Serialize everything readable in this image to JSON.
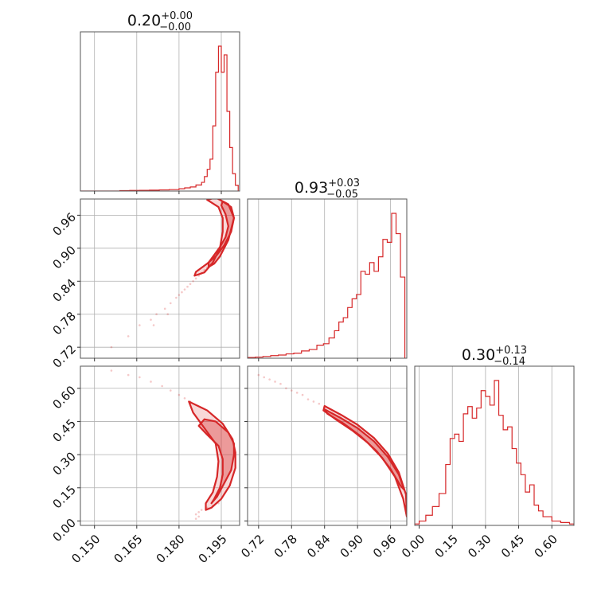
{
  "chart_data": {
    "type": "corner",
    "color": "#d62728",
    "grid": true,
    "parameters": [
      {
        "median": "0.20",
        "err_plus": "+0.00",
        "err_minus": "−0.00",
        "range": [
          0.145,
          0.2015
        ],
        "ticks": [
          "0.150",
          "0.165",
          "0.180",
          "0.195"
        ],
        "tick_values": [
          0.15,
          0.165,
          0.18,
          0.195
        ]
      },
      {
        "median": "0.93",
        "err_plus": "+0.03",
        "err_minus": "−0.05",
        "range": [
          0.7,
          0.9895
        ],
        "ticks": [
          "0.72",
          "0.78",
          "0.84",
          "0.90",
          "0.96"
        ],
        "tick_values": [
          0.72,
          0.78,
          0.84,
          0.9,
          0.96
        ]
      },
      {
        "median": "0.30",
        "err_plus": "+0.13",
        "err_minus": "−0.14",
        "range": [
          -0.02,
          0.7
        ],
        "ticks": [
          "0.00",
          "0.15",
          "0.30",
          "0.45",
          "0.60"
        ],
        "tick_values": [
          0.0,
          0.15,
          0.3,
          0.45,
          0.6
        ]
      }
    ],
    "histograms": [
      {
        "x": [
          0.145,
          0.1485,
          0.152,
          0.1555,
          0.159,
          0.1625,
          0.166,
          0.1695,
          0.173,
          0.1765,
          0.18,
          0.182,
          0.184,
          0.186,
          0.188,
          0.189,
          0.19,
          0.191,
          0.192,
          0.193,
          0.194,
          0.195,
          0.196,
          0.197,
          0.198,
          0.199,
          0.2,
          0.201
        ],
        "y": [
          0,
          0,
          0,
          0,
          0.003,
          0.004,
          0.005,
          0.006,
          0.008,
          0.01,
          0.016,
          0.022,
          0.028,
          0.042,
          0.06,
          0.1,
          0.15,
          0.22,
          0.45,
          0.82,
          1.0,
          0.82,
          0.94,
          0.55,
          0.3,
          0.12,
          0.04,
          0
        ]
      },
      {
        "x": [
          0.7,
          0.714,
          0.728,
          0.742,
          0.756,
          0.77,
          0.784,
          0.798,
          0.812,
          0.826,
          0.838,
          0.848,
          0.858,
          0.866,
          0.874,
          0.882,
          0.89,
          0.898,
          0.906,
          0.914,
          0.922,
          0.93,
          0.938,
          0.946,
          0.954,
          0.962,
          0.97,
          0.978,
          0.986
        ],
        "y": [
          0.005,
          0.008,
          0.012,
          0.018,
          0.022,
          0.03,
          0.035,
          0.05,
          0.06,
          0.09,
          0.1,
          0.14,
          0.19,
          0.25,
          0.28,
          0.35,
          0.41,
          0.44,
          0.6,
          0.58,
          0.66,
          0.6,
          0.7,
          0.82,
          0.8,
          1.0,
          0.86,
          0.56,
          0
        ]
      },
      {
        "x": [
          -0.02,
          0.0,
          0.03,
          0.06,
          0.09,
          0.12,
          0.14,
          0.16,
          0.18,
          0.2,
          0.22,
          0.24,
          0.26,
          0.28,
          0.3,
          0.32,
          0.34,
          0.36,
          0.38,
          0.4,
          0.42,
          0.44,
          0.46,
          0.48,
          0.5,
          0.52,
          0.54,
          0.56,
          0.6,
          0.64,
          0.68,
          0.7
        ],
        "y": [
          0.01,
          0.03,
          0.07,
          0.13,
          0.22,
          0.42,
          0.6,
          0.63,
          0.58,
          0.77,
          0.82,
          0.74,
          0.81,
          0.93,
          0.89,
          0.83,
          1.0,
          0.76,
          0.66,
          0.68,
          0.53,
          0.43,
          0.35,
          0.23,
          0.28,
          0.14,
          0.1,
          0.06,
          0.03,
          0.02,
          0.01,
          0.0
        ]
      }
    ],
    "contours": [
      {
        "pair": [
          0,
          1
        ],
        "level_fraction": 0.5,
        "x": [
          0.1955,
          0.1985,
          0.1995,
          0.1985,
          0.1975,
          0.196,
          0.1945,
          0.1925,
          0.1905,
          0.1905,
          0.1925,
          0.1945,
          0.1965,
          0.1975,
          0.1965,
          0.195,
          0.1955
        ],
        "y": [
          0.985,
          0.975,
          0.955,
          0.935,
          0.915,
          0.9,
          0.885,
          0.872,
          0.866,
          0.874,
          0.888,
          0.902,
          0.92,
          0.94,
          0.962,
          0.978,
          0.985
        ]
      },
      {
        "pair": [
          0,
          1
        ],
        "level_fraction": 0.85,
        "x": [
          0.193,
          0.1975,
          0.1995,
          0.1985,
          0.196,
          0.1935,
          0.19,
          0.186,
          0.1855,
          0.189,
          0.192,
          0.1945,
          0.1955,
          0.1955,
          0.194,
          0.19,
          0.193
        ],
        "y": [
          0.992,
          0.98,
          0.955,
          0.93,
          0.905,
          0.888,
          0.872,
          0.857,
          0.85,
          0.856,
          0.874,
          0.9,
          0.93,
          0.955,
          0.975,
          0.988,
          0.992
        ]
      },
      {
        "pair": [
          0,
          2
        ],
        "level_fraction": 0.5,
        "x": [
          0.193,
          0.1975,
          0.1995,
          0.1995,
          0.1985,
          0.196,
          0.1935,
          0.1915,
          0.1925,
          0.1945,
          0.1955,
          0.1955,
          0.194,
          0.19,
          0.187,
          0.189,
          0.193
        ],
        "y": [
          0.45,
          0.4,
          0.35,
          0.3,
          0.23,
          0.17,
          0.11,
          0.08,
          0.1,
          0.15,
          0.21,
          0.28,
          0.34,
          0.39,
          0.43,
          0.46,
          0.45
        ]
      },
      {
        "pair": [
          0,
          2
        ],
        "level_fraction": 0.85,
        "x": [
          0.1835,
          0.19,
          0.1955,
          0.199,
          0.2,
          0.2,
          0.198,
          0.195,
          0.1915,
          0.1895,
          0.1895,
          0.192,
          0.1935,
          0.194,
          0.193,
          0.189,
          0.185,
          0.1835
        ],
        "y": [
          0.54,
          0.5,
          0.44,
          0.37,
          0.31,
          0.24,
          0.16,
          0.1,
          0.06,
          0.05,
          0.08,
          0.13,
          0.2,
          0.27,
          0.35,
          0.42,
          0.49,
          0.54
        ]
      },
      {
        "pair": [
          1,
          2
        ],
        "level_fraction": 0.5,
        "x": [
          0.84,
          0.87,
          0.9,
          0.93,
          0.955,
          0.975,
          0.985,
          0.978,
          0.96,
          0.935,
          0.905,
          0.875,
          0.845,
          0.84
        ],
        "y": [
          0.505,
          0.465,
          0.42,
          0.36,
          0.29,
          0.21,
          0.14,
          0.16,
          0.235,
          0.315,
          0.385,
          0.44,
          0.485,
          0.505
        ]
      },
      {
        "pair": [
          1,
          2
        ],
        "level_fraction": 0.85,
        "x": [
          0.84,
          0.87,
          0.9,
          0.93,
          0.955,
          0.975,
          0.988,
          0.9895,
          0.983,
          0.968,
          0.945,
          0.918,
          0.89,
          0.86,
          0.838,
          0.84
        ],
        "y": [
          0.52,
          0.48,
          0.435,
          0.375,
          0.305,
          0.22,
          0.12,
          0.02,
          0.1,
          0.2,
          0.285,
          0.355,
          0.41,
          0.46,
          0.5,
          0.52
        ]
      }
    ],
    "scatter": [
      {
        "pair": [
          0,
          1
        ],
        "x": [
          0.156,
          0.162,
          0.166,
          0.17,
          0.172,
          0.175,
          0.177,
          0.18,
          0.181,
          0.183,
          0.184,
          0.185,
          0.186,
          0.187,
          0.188,
          0.189,
          0.19,
          0.191,
          0.171,
          0.176,
          0.179,
          0.182
        ],
        "y": [
          0.72,
          0.74,
          0.76,
          0.77,
          0.78,
          0.79,
          0.8,
          0.815,
          0.82,
          0.83,
          0.835,
          0.84,
          0.845,
          0.85,
          0.855,
          0.86,
          0.865,
          0.87,
          0.76,
          0.78,
          0.81,
          0.825
        ]
      },
      {
        "pair": [
          0,
          2
        ],
        "x": [
          0.156,
          0.162,
          0.166,
          0.17,
          0.174,
          0.177,
          0.18,
          0.182,
          0.184,
          0.186,
          0.187,
          0.186,
          0.187,
          0.188,
          0.19,
          0.192,
          0.194
        ],
        "y": [
          0.68,
          0.66,
          0.65,
          0.63,
          0.61,
          0.59,
          0.57,
          0.555,
          0.54,
          0.01,
          0.02,
          0.03,
          0.04,
          0.05,
          0.06,
          0.07,
          0.08
        ]
      },
      {
        "pair": [
          1,
          2
        ],
        "x": [
          0.72,
          0.73,
          0.74,
          0.75,
          0.76,
          0.77,
          0.78,
          0.79,
          0.8,
          0.81,
          0.82,
          0.83
        ],
        "y": [
          0.66,
          0.65,
          0.64,
          0.63,
          0.62,
          0.6,
          0.59,
          0.58,
          0.57,
          0.55,
          0.54,
          0.53
        ]
      }
    ]
  }
}
